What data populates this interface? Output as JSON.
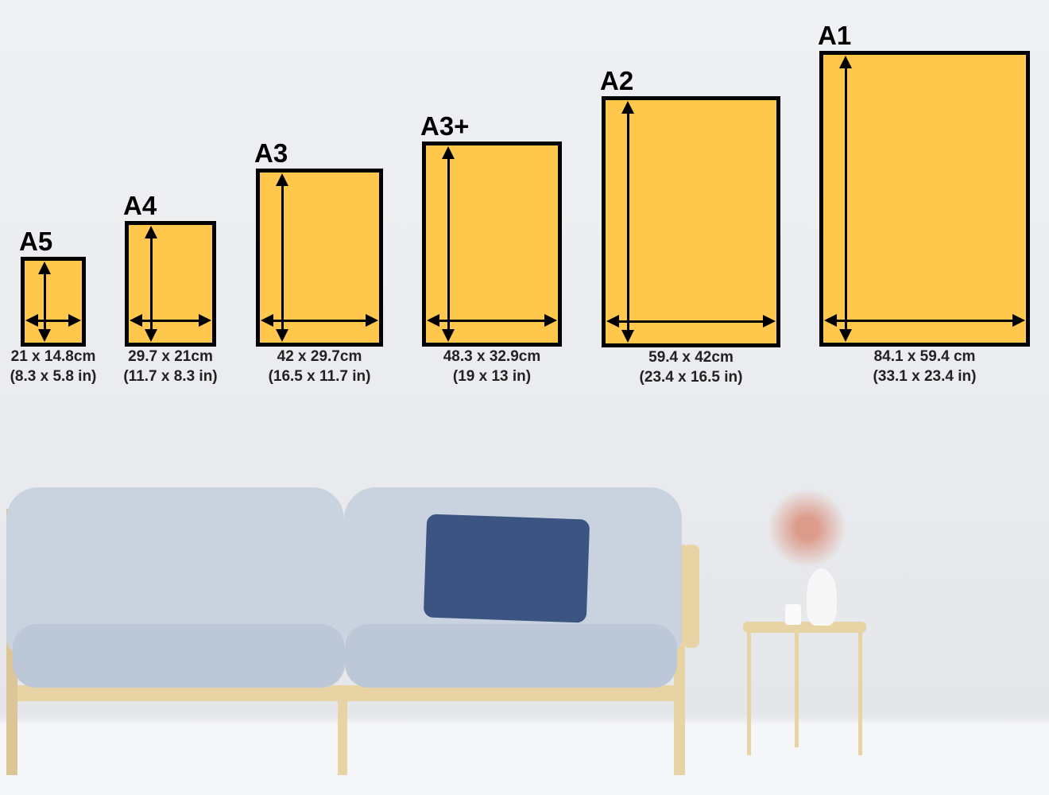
{
  "colors": {
    "frame_fill": "#FFC84C",
    "frame_border": "#000000",
    "wall": "#ECEEF1"
  },
  "sizes": [
    {
      "name": "A5",
      "cm": "21 x 14.8cm",
      "in": "(8.3 x 5.8 in)"
    },
    {
      "name": "A4",
      "cm": "29.7 x 21cm",
      "in": "(11.7 x 8.3 in)"
    },
    {
      "name": "A3",
      "cm": "42 x 29.7cm",
      "in": "(16.5 x 11.7 in)"
    },
    {
      "name": "A3+",
      "cm": "48.3 x 32.9cm",
      "in": "(19 x 13 in)"
    },
    {
      "name": "A2",
      "cm": "59.4 x 42cm",
      "in": "(23.4 x 16.5 in)"
    },
    {
      "name": "A1",
      "cm": "84.1 x 59.4 cm",
      "in": "(33.1 x 23.4 in)"
    }
  ]
}
